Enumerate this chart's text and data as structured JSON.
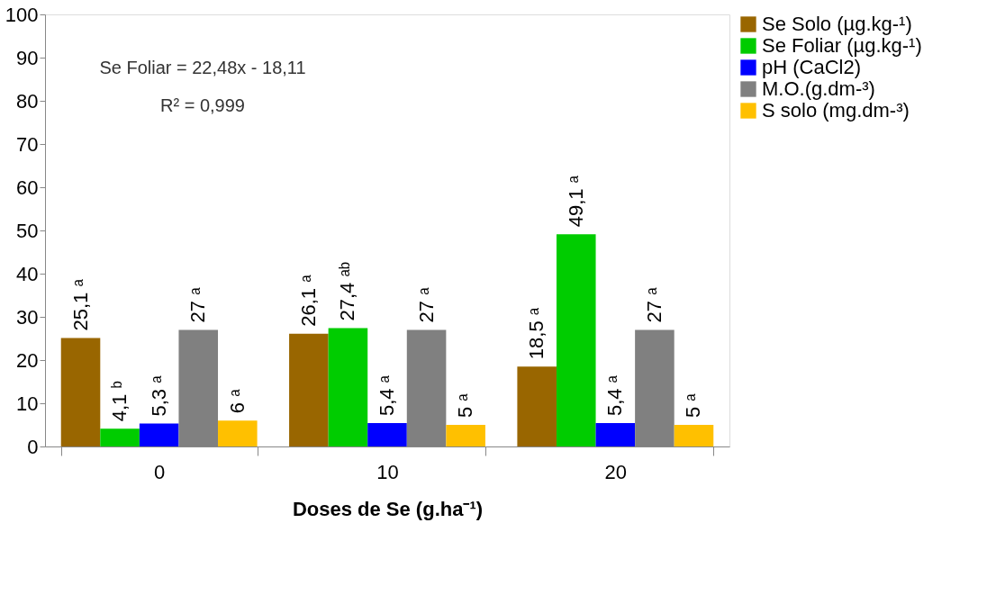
{
  "chart_data": {
    "type": "bar",
    "categories": [
      "0",
      "10",
      "20"
    ],
    "xlabel": "Doses de Se (g.ha⁻¹)",
    "ylim": [
      0,
      100
    ],
    "yticks": [
      0,
      10,
      20,
      30,
      40,
      50,
      60,
      70,
      80,
      90,
      100
    ],
    "grid": false,
    "legend": "top right",
    "series": [
      {
        "name": "Se Solo (µg.kg-¹)",
        "color": "#996600",
        "values": [
          25.1,
          26.1,
          18.5
        ],
        "value_labels": [
          "25,1 ᵃ",
          "26,1 ᵃ",
          "18,5 ᵃ"
        ]
      },
      {
        "name": "Se Foliar (µg.kg-¹)",
        "color": "#00cc00",
        "values": [
          4.1,
          27.4,
          49.1
        ],
        "value_labels": [
          "4,1 ᵇ",
          "27,4 ᵃᵇ",
          "49,1 ᵃ"
        ]
      },
      {
        "name": "pH (CaCl2)",
        "color": "#0000ff",
        "values": [
          5.3,
          5.4,
          5.4
        ],
        "value_labels": [
          "5,3 ᵃ",
          "5,4 ᵃ",
          "5,4 ᵃ"
        ]
      },
      {
        "name": "M.O.(g.dm-³)",
        "color": "#808080",
        "values": [
          27,
          27,
          27
        ],
        "value_labels": [
          "27 ᵃ",
          "27 ᵃ",
          "27 ᵃ"
        ]
      },
      {
        "name": "S solo (mg.dm-³)",
        "color": "#ffc000",
        "values": [
          6,
          5,
          5
        ],
        "value_labels": [
          "6 ᵃ",
          "5 ᵃ",
          "5 ᵃ"
        ]
      }
    ],
    "annotations": [
      "Se Foliar = 22,48x - 18,11",
      "R² = 0,999"
    ]
  }
}
